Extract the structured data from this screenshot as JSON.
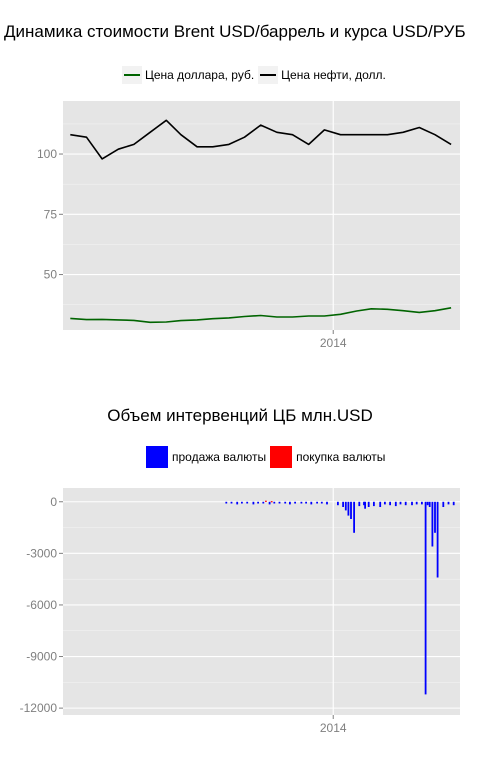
{
  "chart_data": [
    {
      "type": "line",
      "title": "Динамика стоимости Brent USD/баррель и курса USD/РУБ",
      "xlabel": "",
      "ylabel": "",
      "x_range": [
        "2012-08-01",
        "2014-09-01"
      ],
      "ylim": [
        27,
        122
      ],
      "y_ticks": [
        50,
        75,
        100
      ],
      "x_ticks": [
        {
          "date": "2014-01-01",
          "label": "2014"
        }
      ],
      "legend_position": "top",
      "grid": true,
      "series": [
        {
          "name": "Цена доллара, руб.",
          "color": "#006400",
          "x": [
            "2012-08",
            "2012-09",
            "2012-10",
            "2012-11",
            "2012-12",
            "2013-01",
            "2013-02",
            "2013-03",
            "2013-04",
            "2013-05",
            "2013-06",
            "2013-07",
            "2013-08",
            "2013-09",
            "2013-10",
            "2013-11",
            "2013-12",
            "2014-01",
            "2014-02",
            "2014-03",
            "2014-04",
            "2014-05",
            "2014-06",
            "2014-07",
            "2014-08"
          ],
          "values": [
            31.8,
            31.3,
            31.4,
            31.2,
            31.0,
            30.2,
            30.3,
            30.9,
            31.2,
            31.7,
            32.0,
            32.6,
            33.0,
            32.4,
            32.4,
            32.8,
            32.8,
            33.5,
            34.9,
            35.8,
            35.6,
            35.0,
            34.3,
            35.0,
            36.2
          ]
        },
        {
          "name": "Цена нефти, долл.",
          "color": "#000000",
          "x": [
            "2012-08",
            "2012-09",
            "2012-10",
            "2012-11",
            "2012-12",
            "2013-01",
            "2013-02",
            "2013-03",
            "2013-04",
            "2013-05",
            "2013-06",
            "2013-07",
            "2013-08",
            "2013-09",
            "2013-10",
            "2013-11",
            "2013-12",
            "2014-01",
            "2014-02",
            "2014-03",
            "2014-04",
            "2014-05",
            "2014-06",
            "2014-07",
            "2014-08"
          ],
          "values": [
            108,
            107,
            98,
            102,
            104,
            109,
            114,
            108,
            103,
            103,
            104,
            107,
            112,
            109,
            108,
            104,
            110,
            108,
            108,
            108,
            108,
            109,
            111,
            108,
            104
          ]
        }
      ]
    },
    {
      "type": "bar",
      "title": "Объем интервенций ЦБ млн.USD",
      "xlabel": "",
      "ylabel": "",
      "x_range": [
        "2012-08-01",
        "2014-09-01"
      ],
      "ylim": [
        -12400,
        800
      ],
      "y_ticks": [
        0,
        -3000,
        -6000,
        -9000,
        -12000
      ],
      "x_ticks": [
        {
          "date": "2014-01-01",
          "label": "2014"
        }
      ],
      "legend_position": "top",
      "grid": true,
      "series": [
        {
          "name": "продажа валюты",
          "color": "#0000ff",
          "x": [
            "2013-06-10",
            "2013-06-20",
            "2013-07-01",
            "2013-07-10",
            "2013-07-20",
            "2013-08-01",
            "2013-08-10",
            "2013-08-20",
            "2013-09-01",
            "2013-09-10",
            "2013-09-20",
            "2013-10-01",
            "2013-10-10",
            "2013-10-20",
            "2013-11-01",
            "2013-11-10",
            "2013-11-20",
            "2013-12-01",
            "2013-12-10",
            "2013-12-20",
            "2014-01-10",
            "2014-01-20",
            "2014-01-25",
            "2014-01-30",
            "2014-02-04",
            "2014-02-10",
            "2014-02-20",
            "2014-03-01",
            "2014-03-03",
            "2014-03-10",
            "2014-03-20",
            "2014-04-01",
            "2014-04-10",
            "2014-04-20",
            "2014-05-01",
            "2014-05-10",
            "2014-05-20",
            "2014-06-01",
            "2014-06-10",
            "2014-06-20",
            "2014-06-27",
            "2014-07-01",
            "2014-07-05",
            "2014-07-10",
            "2014-07-15",
            "2014-07-20",
            "2014-07-31",
            "2014-08-10",
            "2014-08-20"
          ],
          "values": [
            -100,
            -100,
            -150,
            -100,
            -100,
            -150,
            -100,
            -100,
            -150,
            -100,
            -100,
            -100,
            -150,
            -100,
            -100,
            -100,
            -150,
            -100,
            -100,
            -150,
            -200,
            -300,
            -500,
            -800,
            -1000,
            -1800,
            -250,
            -200,
            -400,
            -300,
            -250,
            -300,
            -150,
            -200,
            -250,
            -150,
            -200,
            -200,
            -150,
            -150,
            -11200,
            -200,
            -300,
            -2600,
            -1800,
            -4400,
            -300,
            -150,
            -200
          ]
        },
        {
          "name": "покупка валюты",
          "color": "#ff0000",
          "x": [
            "2013-08-25",
            "2013-09-05"
          ],
          "values": [
            60,
            40
          ]
        }
      ]
    }
  ]
}
